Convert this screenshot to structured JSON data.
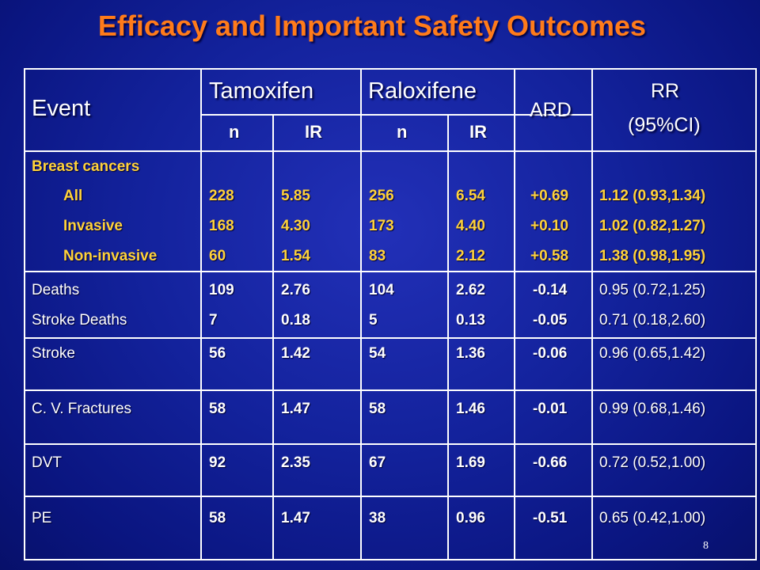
{
  "title": "Efficacy and Important Safety Outcomes",
  "slide_number": "8",
  "header": {
    "event": "Event",
    "tamoxifen": "Tamoxifen",
    "raloxifene": "Raloxifene",
    "ard": "ARD",
    "rr": "RR",
    "ci": "(95%CI)",
    "n": "n",
    "ir": "IR"
  },
  "breast": {
    "heading": "Breast cancers",
    "rows": [
      {
        "label": "All",
        "tam_n": "228",
        "tam_ir": "5.85",
        "ral_n": "256",
        "ral_ir": "6.54",
        "ard": "+0.69",
        "rr": "1.12 (0.93,1.34)"
      },
      {
        "label": "Invasive",
        "tam_n": "168",
        "tam_ir": "4.30",
        "ral_n": "173",
        "ral_ir": "4.40",
        "ard": "+0.10",
        "rr": "1.02 (0.82,1.27)"
      },
      {
        "label": "Non-invasive",
        "tam_n": "60",
        "tam_ir": "1.54",
        "ral_n": "83",
        "ral_ir": "2.12",
        "ard": "+0.58",
        "rr": "1.38 (0.98,1.95)"
      }
    ]
  },
  "deaths": [
    {
      "label": "Deaths",
      "tam_n": "109",
      "tam_ir": "2.76",
      "ral_n": "104",
      "ral_ir": "2.62",
      "ard": "-0.14",
      "rr": "0.95 (0.72,1.25)"
    },
    {
      "label": "Stroke Deaths",
      "tam_n": "7",
      "tam_ir": "0.18",
      "ral_n": "5",
      "ral_ir": "0.13",
      "ard": "-0.05",
      "rr": "0.71 (0.18,2.60)"
    }
  ],
  "rows": [
    {
      "label": "Stroke",
      "tam_n": "56",
      "tam_ir": "1.42",
      "ral_n": "54",
      "ral_ir": "1.36",
      "ard": "-0.06",
      "rr": "0.96 (0.65,1.42)"
    },
    {
      "label": "C. V. Fractures",
      "tam_n": "58",
      "tam_ir": "1.47",
      "ral_n": "58",
      "ral_ir": "1.46",
      "ard": "-0.01",
      "rr": "0.99 (0.68,1.46)"
    },
    {
      "label": "DVT",
      "tam_n": "92",
      "tam_ir": "2.35",
      "ral_n": "67",
      "ral_ir": "1.69",
      "ard": "-0.66",
      "rr": "0.72 (0.52,1.00)"
    },
    {
      "label": "PE",
      "tam_n": "58",
      "tam_ir": "1.47",
      "ral_n": "38",
      "ral_ir": "0.96",
      "ard": "-0.51",
      "rr": "0.65 (0.42,1.00)"
    }
  ]
}
